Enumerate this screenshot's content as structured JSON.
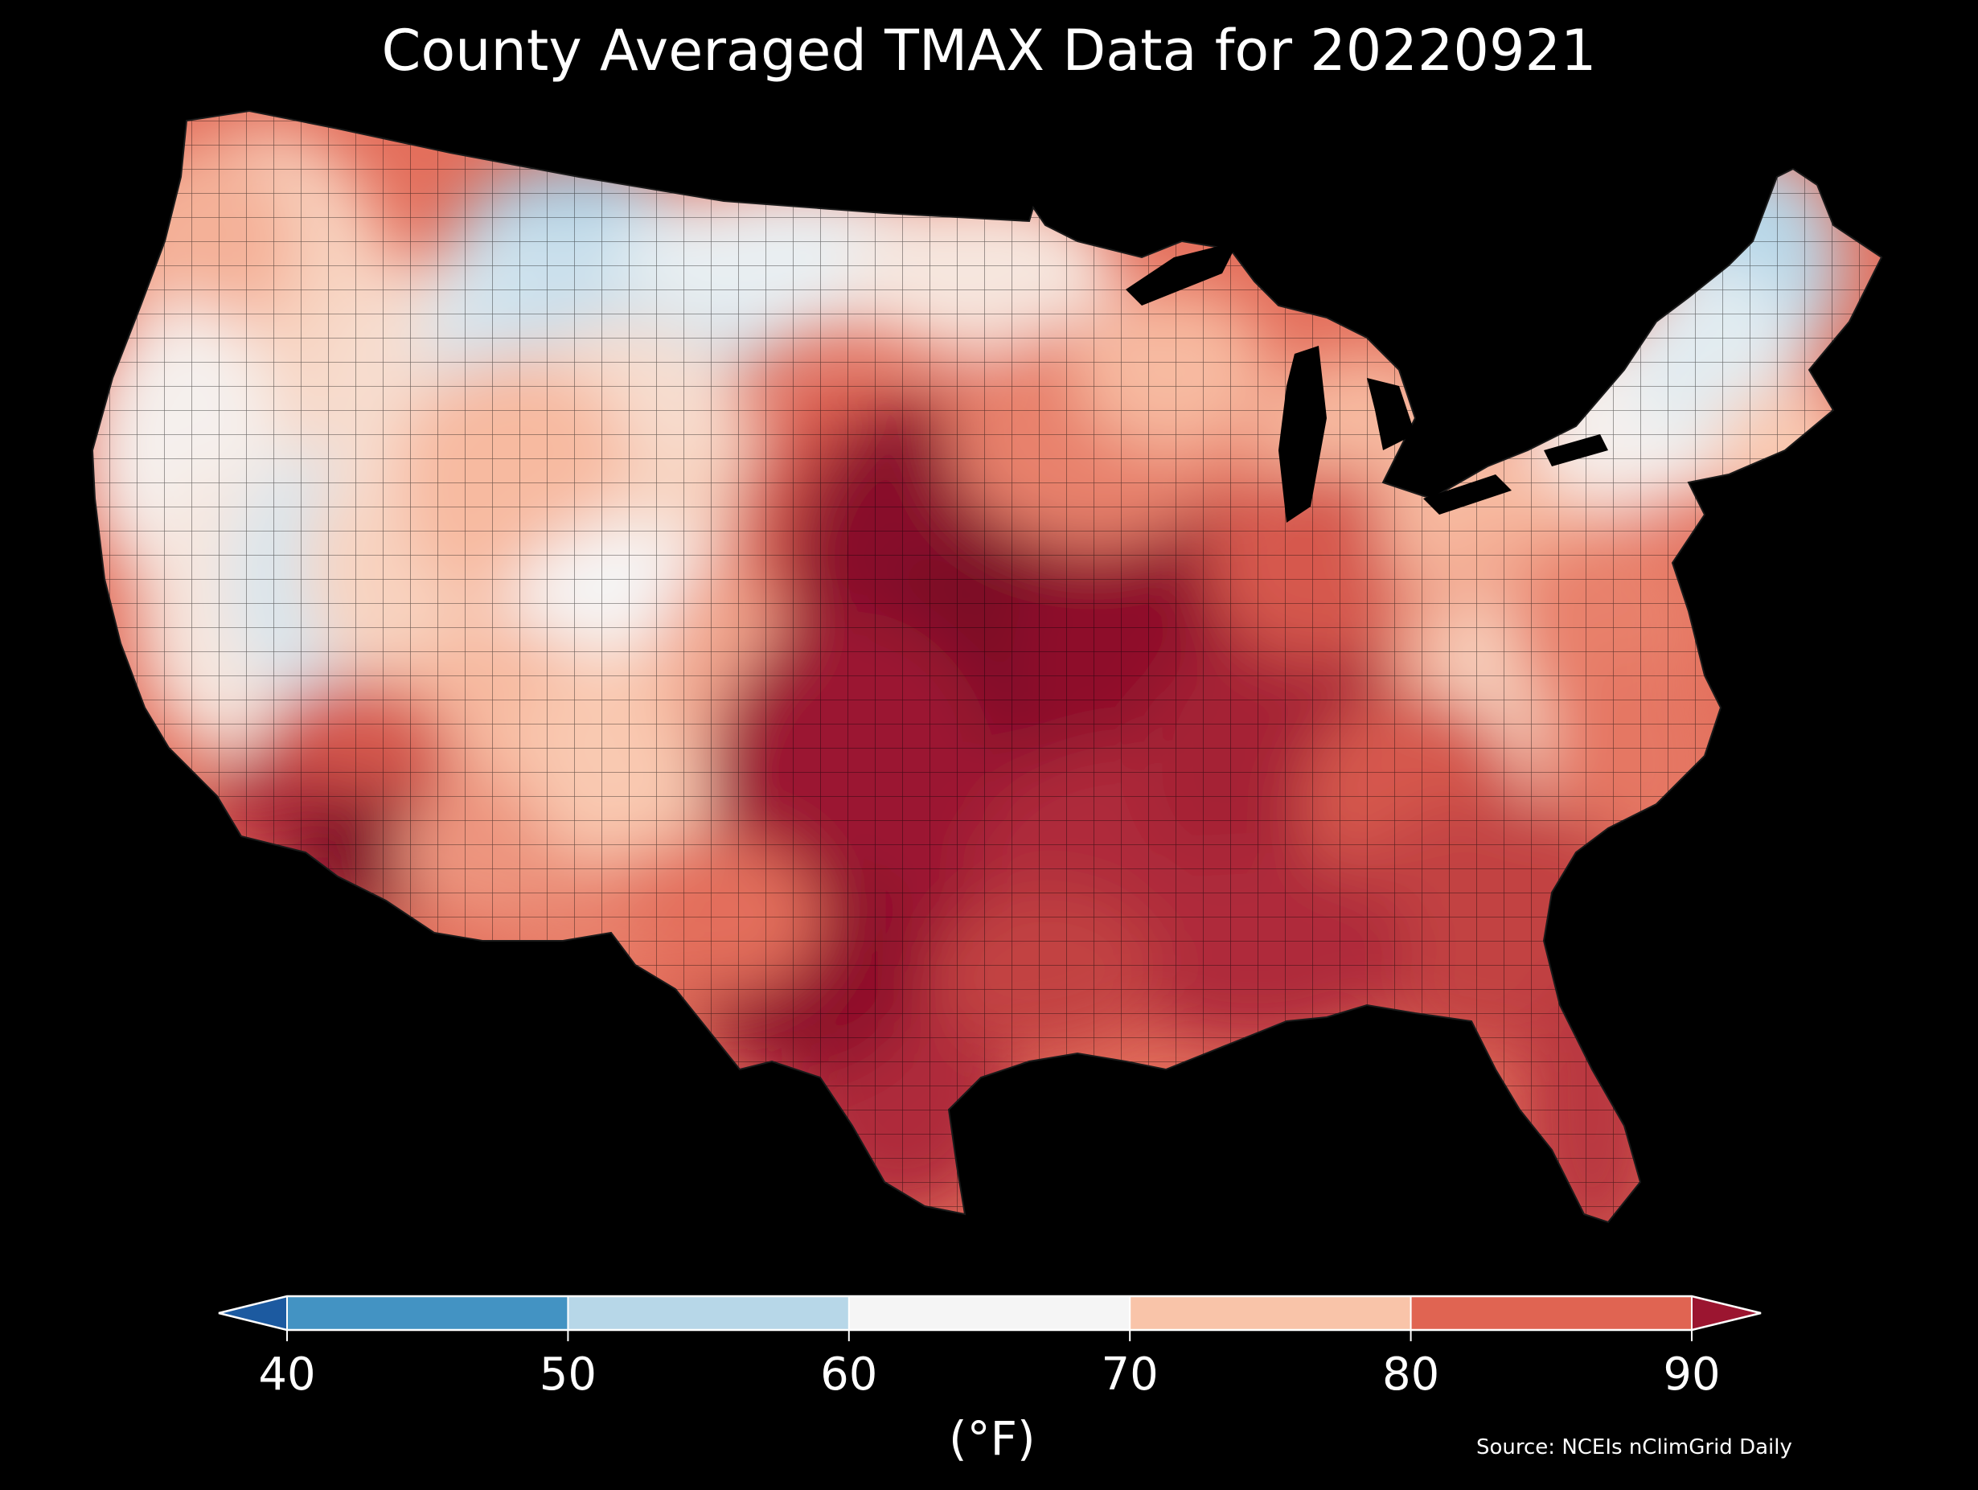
{
  "title": "County Averaged TMAX Data for 20220921",
  "colorbar": {
    "unit": "(°F)",
    "ticks": [
      "40",
      "50",
      "60",
      "70",
      "80",
      "90"
    ],
    "min_value": 40,
    "max_value": 90,
    "extend": "both",
    "bins": [
      {
        "range": [
          40,
          50
        ],
        "color": "#4393c3"
      },
      {
        "range": [
          50,
          60
        ],
        "color": "#b7d7e8"
      },
      {
        "range": [
          60,
          70
        ],
        "color": "#f5f5f5"
      },
      {
        "range": [
          70,
          80
        ],
        "color": "#f9c4a9"
      },
      {
        "range": [
          80,
          90
        ],
        "color": "#e06452"
      }
    ],
    "under_color": "#1c5aa0",
    "over_color": "#9b1530"
  },
  "source": "Source: NCEIs nClimGrid Daily",
  "map": {
    "region": "contiguous United States",
    "ocean_color": "#000000",
    "county_border_color": "#000000",
    "regional_tmax_f": [
      {
        "area": "Pacific Northwest coast",
        "value_range": [
          65,
          80
        ]
      },
      {
        "area": "Interior Northwest / Great Basin",
        "value_range": [
          55,
          75
        ]
      },
      {
        "area": "Montana / northern Rockies",
        "value_range": [
          45,
          60
        ]
      },
      {
        "area": "Northern Plains",
        "value_range": [
          60,
          70
        ]
      },
      {
        "area": "Desert Southwest",
        "value_range": [
          85,
          100
        ]
      },
      {
        "area": "Southern Rockies",
        "value_range": [
          68,
          80
        ]
      },
      {
        "area": "Central Plains / Midwest",
        "value_range": [
          88,
          100
        ]
      },
      {
        "area": "Great Lakes",
        "value_range": [
          72,
          82
        ]
      },
      {
        "area": "New England",
        "value_range": [
          50,
          68
        ]
      },
      {
        "area": "Mid-Atlantic",
        "value_range": [
          76,
          85
        ]
      },
      {
        "area": "Appalachians",
        "value_range": [
          70,
          78
        ]
      },
      {
        "area": "Southeast / Gulf Coast",
        "value_range": [
          82,
          92
        ]
      },
      {
        "area": "Texas",
        "value_range": [
          88,
          98
        ]
      },
      {
        "area": "Florida",
        "value_range": [
          85,
          91
        ]
      }
    ]
  }
}
